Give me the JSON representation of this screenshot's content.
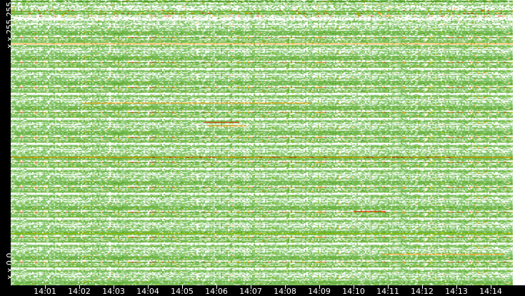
{
  "chart_data": {
    "type": "heatmap",
    "title": "",
    "y_labels": {
      "top": "x.x.255.255",
      "bottom": "x.x.0.0"
    },
    "x_ticks": [
      "14:01",
      "14:02",
      "14:03",
      "14:04",
      "14:05",
      "14:06",
      "14:07",
      "14:08",
      "14:09",
      "14:10",
      "14:11",
      "14:12",
      "14:13",
      "14:14"
    ],
    "colors": {
      "low": "#8fcc7a",
      "mid": "#66b032",
      "midhigh": "#4c9a1a",
      "elevated": "#aacc00",
      "high": "#ff9900",
      "max": "#ee2200",
      "empty": "#ffffff",
      "axis_bg": "#000000",
      "axis_text": "#ffffff"
    }
  }
}
